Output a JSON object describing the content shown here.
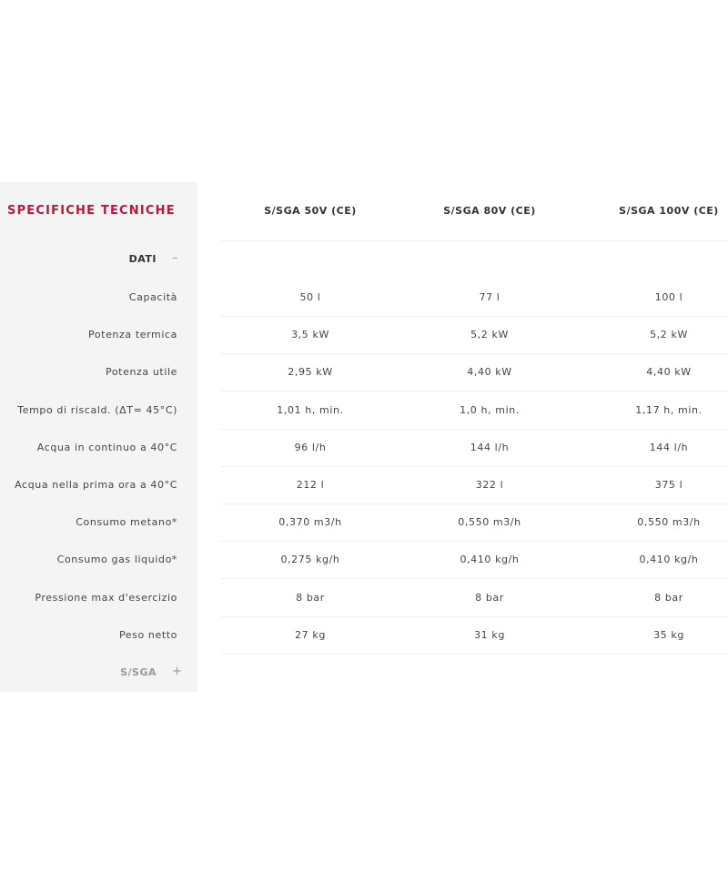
{
  "title": "SPECIFICHE TECNICHE",
  "title_color": "#c0163a",
  "columns": [
    "S/SGA 50V (CE)",
    "S/SGA 80V (CE)",
    "S/SGA 100V (CE)"
  ],
  "sections": [
    {
      "label": "DATI",
      "toggle": "–",
      "expanded": true
    },
    {
      "label": "S/SGA",
      "toggle": "+",
      "expanded": false
    }
  ],
  "rows": [
    {
      "label": "Capacità",
      "values": [
        "50 l",
        "77 l",
        "100 l"
      ]
    },
    {
      "label": "Potenza termica",
      "values": [
        "3,5 kW",
        "5,2 kW",
        "5,2 kW"
      ]
    },
    {
      "label": "Potenza utile",
      "values": [
        "2,95 kW",
        "4,40 kW",
        "4,40 kW"
      ]
    },
    {
      "label": "Tempo di riscald. (ΔT= 45°C)",
      "values": [
        "1,01 h, min.",
        "1,0 h, min.",
        "1,17 h, min."
      ]
    },
    {
      "label": "Acqua in continuo a 40°C",
      "values": [
        "96 l/h",
        "144 l/h",
        "144 l/h"
      ]
    },
    {
      "label": "Acqua nella prima ora a 40°C",
      "values": [
        "212 l",
        "322 l",
        "375 l"
      ]
    },
    {
      "label": "Consumo metano*",
      "values": [
        "0,370 m3/h",
        "0,550 m3/h",
        "0,550 m3/h"
      ]
    },
    {
      "label": "Consumo gas liquido*",
      "values": [
        "0,275 kg/h",
        "0,410 kg/h",
        "0,410 kg/h"
      ]
    },
    {
      "label": "Pressione max d'esercizio",
      "values": [
        "8 bar",
        "8 bar",
        "8 bar"
      ]
    },
    {
      "label": "Peso netto",
      "values": [
        "27 kg",
        "31 kg",
        "35 kg"
      ]
    }
  ]
}
